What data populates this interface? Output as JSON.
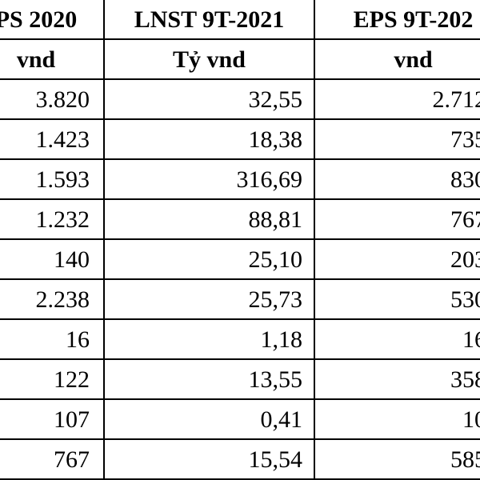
{
  "table": {
    "header": [
      "PS 2020",
      "LNST 9T-2021",
      "EPS 9T-202"
    ],
    "units": [
      "vnd",
      "Tỷ vnd",
      "vnd"
    ],
    "rows": [
      [
        "3.820",
        "32,55",
        "2.712"
      ],
      [
        "1.423",
        "18,38",
        "735"
      ],
      [
        "1.593",
        "316,69",
        "830"
      ],
      [
        "1.232",
        "88,81",
        "767"
      ],
      [
        "140",
        "25,10",
        "203"
      ],
      [
        "2.238",
        "25,73",
        "530"
      ],
      [
        "16",
        "1,18",
        "16"
      ],
      [
        "122",
        "13,55",
        "358"
      ],
      [
        "107",
        "0,41",
        "10"
      ],
      [
        "767",
        "15,54",
        "585"
      ]
    ]
  }
}
